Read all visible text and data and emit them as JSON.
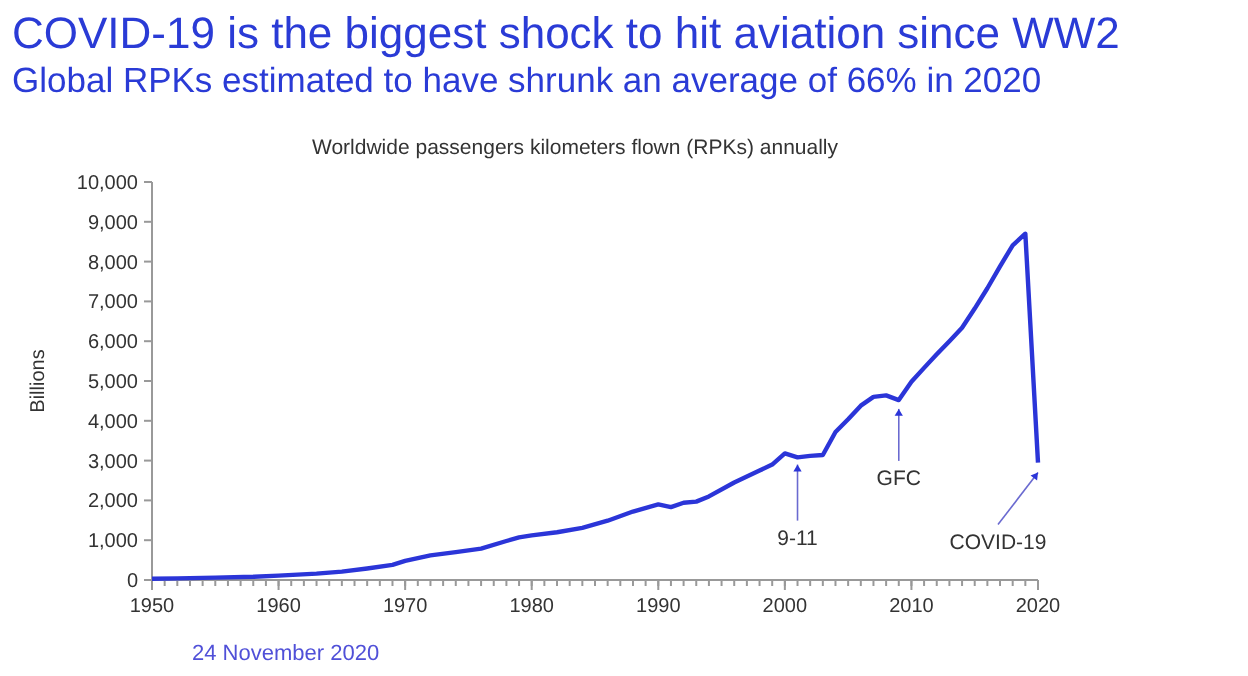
{
  "chart_data": {
    "type": "line",
    "title": "COVID-19 is the biggest shock to hit aviation since WW2",
    "subtitle": "Global RPKs estimated to have shrunk an average of 66% in 2020",
    "xlabel": null,
    "ylabel": "Billions",
    "annotations": [
      {
        "text": "Worldwide passengers kilometers flown (RPKs) annually"
      },
      {
        "text": "9-11",
        "x": 2001,
        "y": 3100
      },
      {
        "text": "GFC",
        "x": 2009,
        "y": 4500
      },
      {
        "text": "COVID-19",
        "x": 2020,
        "y": 2900
      },
      {
        "text": "24 November 2020"
      }
    ],
    "x": [
      1950,
      1952,
      1955,
      1958,
      1960,
      1963,
      1965,
      1967,
      1969,
      1970,
      1972,
      1974,
      1976,
      1978,
      1979,
      1980,
      1982,
      1984,
      1986,
      1988,
      1990,
      1991,
      1992,
      1993,
      1994,
      1996,
      1998,
      1999,
      2000,
      2001,
      2002,
      2003,
      2004,
      2005,
      2006,
      2007,
      2008,
      2009,
      2010,
      2011,
      2012,
      2013,
      2014,
      2015,
      2016,
      2017,
      2018,
      2019,
      2020
    ],
    "series": [
      {
        "color": "#2b35d8",
        "values": [
          30,
          40,
          60,
          80,
          110,
          160,
          210,
          290,
          380,
          480,
          620,
          700,
          790,
          980,
          1070,
          1120,
          1200,
          1310,
          1490,
          1720,
          1900,
          1830,
          1940,
          1970,
          2100,
          2450,
          2750,
          2900,
          3180,
          3080,
          3120,
          3140,
          3720,
          4040,
          4380,
          4600,
          4640,
          4520,
          4980,
          5330,
          5670,
          6000,
          6340,
          6820,
          7330,
          7880,
          8410,
          8700,
          2950
        ]
      }
    ],
    "xlim": [
      1950,
      2020
    ],
    "ylim": [
      0,
      10000
    ],
    "xticks": [
      {
        "value": 1950,
        "label": "1950"
      },
      {
        "value": 1960,
        "label": "1960"
      },
      {
        "value": 1970,
        "label": "1970"
      },
      {
        "value": 1980,
        "label": "1980"
      },
      {
        "value": 1990,
        "label": "1990"
      },
      {
        "value": 2000,
        "label": "2000"
      },
      {
        "value": 2010,
        "label": "2010"
      },
      {
        "value": 2020,
        "label": "2020"
      }
    ],
    "yticks": [
      {
        "value": 0,
        "label": "0"
      },
      {
        "value": 1000,
        "label": "1,000"
      },
      {
        "value": 2000,
        "label": "2,000"
      },
      {
        "value": 3000,
        "label": "3,000"
      },
      {
        "value": 4000,
        "label": "4,000"
      },
      {
        "value": 5000,
        "label": "5,000"
      },
      {
        "value": 6000,
        "label": "6,000"
      },
      {
        "value": 7000,
        "label": "7,000"
      },
      {
        "value": 8000,
        "label": "8,000"
      },
      {
        "value": 9000,
        "label": "9,000"
      },
      {
        "value": 10000,
        "label": "10,000"
      }
    ],
    "grid": false,
    "marker": "none",
    "line_style": "solid"
  }
}
